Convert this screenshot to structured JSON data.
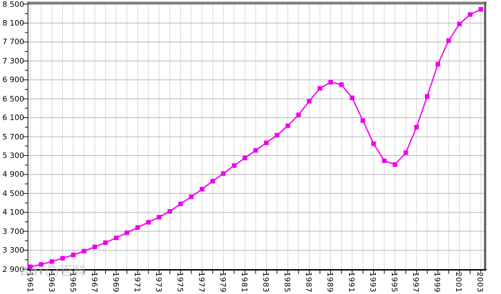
{
  "chart": {
    "title": "",
    "watermark": {
      "prefix": "Bai",
      "cjk": "百科",
      "full_text": "Baidu百科"
    }
  },
  "colors": {
    "series": "#ee00ee",
    "grid_major_horizontal": "#b4b4b4",
    "grid_minor_vertical": "#d9d9d9",
    "border_top": "#7d7d7d",
    "border_right": "#565656",
    "axis": "#000000",
    "watermark": "#c2c2c2",
    "background": "#ffffff"
  },
  "chart_data": {
    "type": "line",
    "title": "",
    "xlabel": "",
    "ylabel": "",
    "x": [
      1961,
      1962,
      1963,
      1964,
      1965,
      1966,
      1967,
      1968,
      1969,
      1970,
      1971,
      1972,
      1973,
      1974,
      1975,
      1976,
      1977,
      1978,
      1979,
      1980,
      1981,
      1982,
      1983,
      1984,
      1985,
      1986,
      1987,
      1988,
      1989,
      1990,
      1991,
      1992,
      1993,
      1994,
      1995,
      1996,
      1997,
      1998,
      1999,
      2000,
      2001,
      2002,
      2003
    ],
    "series": [
      {
        "name": "population-in-thousands",
        "marker": "square",
        "color": "#ee00ee",
        "values": [
          2950,
          3000,
          3060,
          3130,
          3200,
          3280,
          3370,
          3460,
          3560,
          3670,
          3780,
          3890,
          4000,
          4120,
          4280,
          4430,
          4590,
          4760,
          4920,
          5090,
          5250,
          5410,
          5570,
          5730,
          5930,
          6160,
          6450,
          6720,
          6850,
          6800,
          6520,
          6040,
          5550,
          5190,
          5110,
          5360,
          5900,
          6550,
          7230,
          7730,
          8080,
          8280,
          8390
        ]
      }
    ],
    "xlim": [
      1961,
      2003
    ],
    "ylim": [
      2900,
      8500
    ],
    "ytick_step": 400,
    "ytick_minor_step": 200,
    "xtick_minor_step": 1,
    "xtick_label_step": 2,
    "grid": true,
    "legend": "none",
    "ytick_labels_top_to_bottom": [
      "8 500",
      "8 100",
      "7 700",
      "7 300",
      "6 900",
      "6 500",
      "6 100",
      "5 700",
      "5 300",
      "4 900",
      "4 500",
      "4 100",
      "3 700",
      "3 300",
      "2 900"
    ],
    "xtick_labels": [
      "1961",
      "1963",
      "1965",
      "1967",
      "1969",
      "1971",
      "1973",
      "1975",
      "1977",
      "1979",
      "1981",
      "1983",
      "1985",
      "1987",
      "1989",
      "1991",
      "1993",
      "1995",
      "1997",
      "1999",
      "2001",
      "2003"
    ]
  }
}
